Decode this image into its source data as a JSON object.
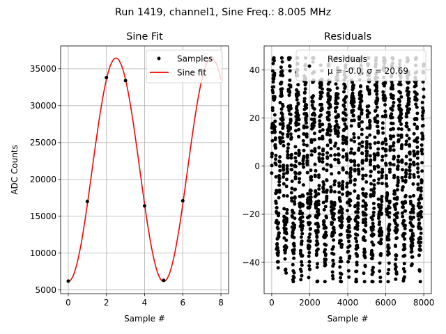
{
  "suptitle": "Run 1419, channel1, Sine Freq.: 8.005 MHz",
  "chart_data": [
    {
      "type": "line",
      "title": "Sine Fit",
      "xlabel": "Sample #",
      "ylabel": "ADC Counts",
      "xlim": [
        -0.4,
        8.4
      ],
      "ylim": [
        4500,
        38100
      ],
      "xticks": [
        0,
        2,
        4,
        6,
        8
      ],
      "yticks": [
        5000,
        10000,
        15000,
        20000,
        25000,
        30000,
        35000
      ],
      "grid": true,
      "legend_position": "upper right",
      "series": [
        {
          "name": "Samples",
          "kind": "scatter",
          "color": "#000000",
          "x": [
            0,
            1,
            2,
            3,
            4,
            5,
            6
          ],
          "y": [
            6200,
            17000,
            33800,
            33400,
            16400,
            6300,
            17100
          ]
        },
        {
          "name": "Sine fit",
          "kind": "line",
          "color": "#ff0000",
          "model": {
            "offset": 21300,
            "amplitude": 15150,
            "period": 5.0,
            "peak_x": 2.5,
            "x_range": [
              0,
              8
            ]
          }
        }
      ]
    },
    {
      "type": "scatter",
      "title": "Residuals",
      "xlabel": "Sample #",
      "ylabel": "",
      "xlim": [
        -400,
        8400
      ],
      "ylim": [
        -53,
        50
      ],
      "xticks": [
        0,
        2000,
        4000,
        6000,
        8000
      ],
      "yticks": [
        -40,
        -20,
        0,
        20,
        40
      ],
      "grid": true,
      "legend_position": "upper right",
      "legend_text": [
        "Residuals",
        "μ = -0.0, σ = 20.69"
      ],
      "series": [
        {
          "name": "Residuals",
          "color": "#000000",
          "n_points": 8000,
          "x_range": [
            0,
            8000
          ],
          "mean": 0.0,
          "std": 20.69,
          "y_range": [
            -48,
            45
          ]
        }
      ]
    }
  ]
}
